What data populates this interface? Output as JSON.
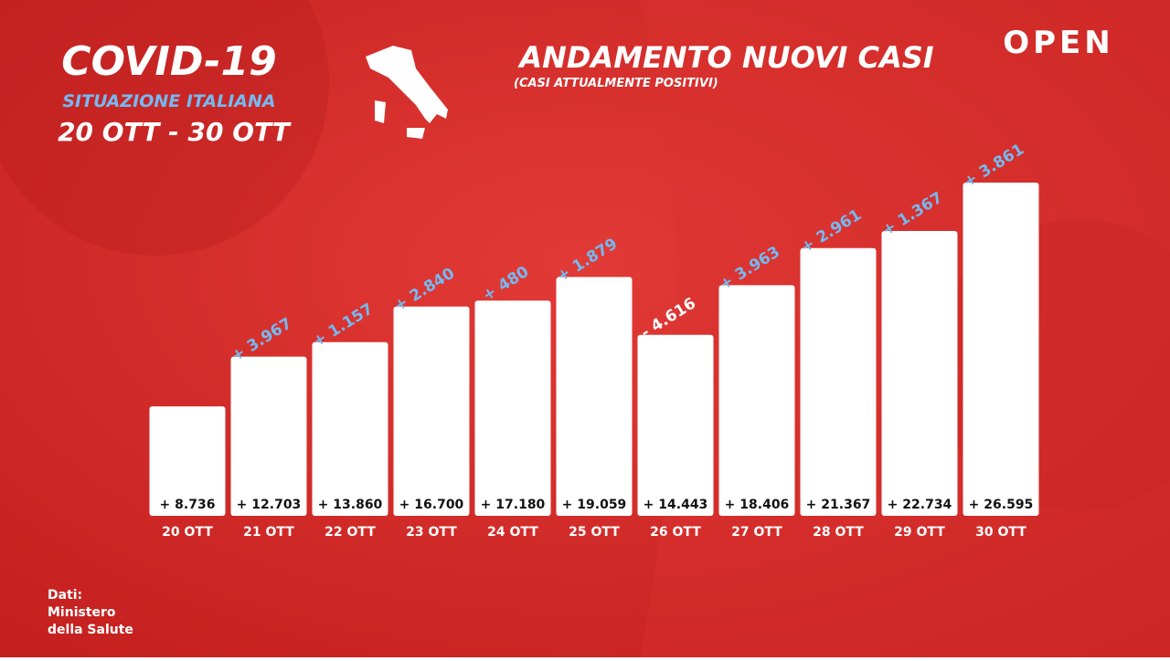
{
  "header": {
    "title": "COVID-19",
    "subtitle": "SITUAZIONE ITALIANA",
    "period": "20 OTT - 30 OTT",
    "brand": "OPEN"
  },
  "source": [
    "Dati:",
    "Ministero",
    "della Salute"
  ],
  "chart_data": {
    "type": "bar",
    "title": "ANDAMENTO NUOVI CASI",
    "subtitle": "(CASI ATTUALMENTE POSITIVI)",
    "categories": [
      "20 OTT",
      "21 OTT",
      "22 OTT",
      "23 OTT",
      "24 OTT",
      "25 OTT",
      "26 OTT",
      "27 OTT",
      "28 OTT",
      "29 OTT",
      "30 OTT"
    ],
    "values": [
      8736,
      12703,
      13860,
      16700,
      17180,
      19059,
      14443,
      18406,
      21367,
      22734,
      26595
    ],
    "value_labels": [
      "+ 8.736",
      "+ 12.703",
      "+ 13.860",
      "+ 16.700",
      "+ 17.180",
      "+ 19.059",
      "+ 14.443",
      "+ 18.406",
      "+ 21.367",
      "+ 22.734",
      "+ 26.595"
    ],
    "color": "#ffffff",
    "changes": {
      "values": [
        null,
        3967,
        1157,
        2840,
        480,
        1879,
        -4616,
        3963,
        2961,
        1367,
        3861
      ],
      "value_labels": [
        null,
        "+ 3.967",
        "+ 1.157",
        "+ 2.840",
        "+ 480",
        "+ 1.879",
        "- 4.616",
        "+ 3.963",
        "+ 2.961",
        "+ 1.367",
        "+ 3.861"
      ],
      "color": "#74baf2",
      "negative_color": "#ffffff"
    }
  }
}
